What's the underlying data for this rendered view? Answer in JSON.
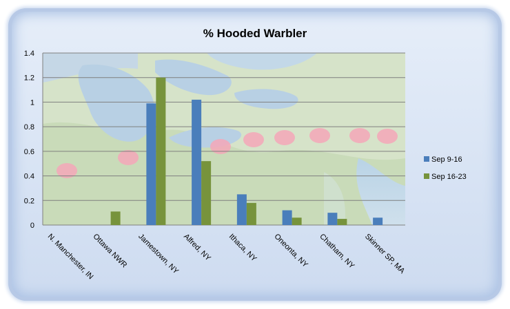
{
  "chart_data": {
    "type": "bar",
    "title": "% Hooded Warbler",
    "xlabel": "",
    "ylabel": "",
    "ylim": [
      0,
      1.4
    ],
    "yticks": [
      "0",
      "0.2",
      "0.4",
      "0.6",
      "0.8",
      "1",
      "1.2",
      "1.4"
    ],
    "categories": [
      "N. Manchester, IN",
      "Ottawa NWR",
      "Jamestown, NY",
      "Alfred, NY",
      "Ithaca, NY",
      "Oneonta, NY",
      "Chatham, NY",
      "Skinner SP, MA"
    ],
    "series": [
      {
        "name": "Sep 9-16",
        "color": "#4a7ebb",
        "values": [
          0,
          0,
          0.99,
          1.02,
          0.25,
          0.12,
          0.1,
          0.06
        ]
      },
      {
        "name": "Sep 16-23",
        "color": "#77933c",
        "values": [
          0,
          0.11,
          1.2,
          0.52,
          0.18,
          0.06,
          0.05,
          0
        ]
      }
    ],
    "grid": true,
    "legend_position": "right",
    "background_image": "map-of-northeastern-us-and-great-lakes",
    "marker_color": "#f4a7b9"
  }
}
